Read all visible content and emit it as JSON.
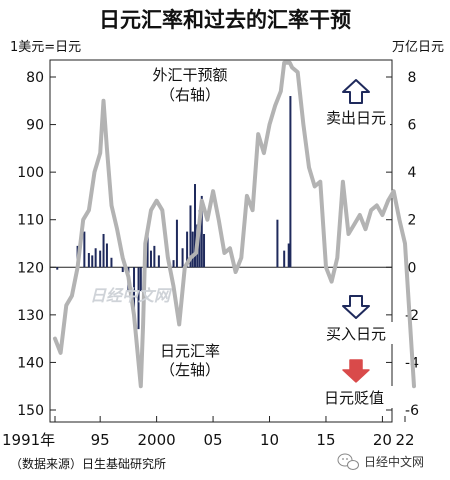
{
  "chart_data": {
    "type": "line",
    "title": "日元汇率和过去的汇率干预",
    "left_unit": "1美元=日元",
    "right_unit": "万亿日元",
    "left_axis": {
      "inverted": true,
      "ylim": [
        75,
        150
      ],
      "ticks": [
        "80",
        "90",
        "100",
        "110",
        "120",
        "130",
        "140",
        "150"
      ]
    },
    "right_axis": {
      "ylim": [
        -6,
        8
      ],
      "ticks": [
        "8",
        "6",
        "4",
        "2",
        "0",
        "-2",
        "-4",
        "-6"
      ]
    },
    "x_axis": {
      "xlim": [
        1991,
        2023
      ],
      "ticks": [
        "1991年",
        "95",
        "2000",
        "05",
        "10",
        "15",
        "20",
        "22"
      ]
    },
    "series": [
      {
        "label": "日元汇率（左轴）",
        "axis": "left",
        "style": "line",
        "color": "#b3b3b3",
        "points": [
          [
            1991.0,
            135
          ],
          [
            1991.5,
            138
          ],
          [
            1992.0,
            128
          ],
          [
            1992.5,
            126
          ],
          [
            1993.0,
            120
          ],
          [
            1993.5,
            110
          ],
          [
            1994.0,
            108
          ],
          [
            1994.5,
            100
          ],
          [
            1995.0,
            96
          ],
          [
            1995.3,
            85
          ],
          [
            1995.6,
            95
          ],
          [
            1996.0,
            107
          ],
          [
            1996.5,
            112
          ],
          [
            1997.0,
            118
          ],
          [
            1997.5,
            122
          ],
          [
            1998.0,
            130
          ],
          [
            1998.6,
            145
          ],
          [
            1998.8,
            132
          ],
          [
            1999.0,
            115
          ],
          [
            1999.5,
            108
          ],
          [
            2000.0,
            106
          ],
          [
            2000.5,
            108
          ],
          [
            2001.0,
            118
          ],
          [
            2001.5,
            124
          ],
          [
            2002.0,
            132
          ],
          [
            2002.5,
            120
          ],
          [
            2003.0,
            118
          ],
          [
            2003.5,
            117
          ],
          [
            2004.0,
            106
          ],
          [
            2004.5,
            110
          ],
          [
            2005.0,
            104
          ],
          [
            2005.5,
            110
          ],
          [
            2006.0,
            117
          ],
          [
            2006.5,
            116
          ],
          [
            2007.0,
            121
          ],
          [
            2007.5,
            118
          ],
          [
            2008.0,
            105
          ],
          [
            2008.5,
            108
          ],
          [
            2009.0,
            92
          ],
          [
            2009.5,
            96
          ],
          [
            2010.0,
            90
          ],
          [
            2010.5,
            86
          ],
          [
            2011.0,
            83
          ],
          [
            2011.3,
            77
          ],
          [
            2011.8,
            77
          ],
          [
            2012.0,
            78
          ],
          [
            2012.5,
            79
          ],
          [
            2013.0,
            90
          ],
          [
            2013.5,
            99
          ],
          [
            2014.0,
            103
          ],
          [
            2014.5,
            102
          ],
          [
            2015.0,
            120
          ],
          [
            2015.5,
            123
          ],
          [
            2016.0,
            118
          ],
          [
            2016.5,
            102
          ],
          [
            2017.0,
            113
          ],
          [
            2017.5,
            111
          ],
          [
            2018.0,
            109
          ],
          [
            2018.5,
            112
          ],
          [
            2019.0,
            108
          ],
          [
            2019.5,
            107
          ],
          [
            2020.0,
            109
          ],
          [
            2020.5,
            106
          ],
          [
            2021.0,
            104
          ],
          [
            2021.5,
            110
          ],
          [
            2022.0,
            115
          ],
          [
            2022.4,
            130
          ],
          [
            2022.8,
            145
          ]
        ]
      },
      {
        "label": "外汇干预额（右轴）",
        "axis": "right",
        "style": "bars",
        "color": "#1f2a5c",
        "points": [
          [
            1991.2,
            -0.1
          ],
          [
            1993.0,
            0.9
          ],
          [
            1993.6,
            1.5
          ],
          [
            1994.0,
            0.6
          ],
          [
            1994.3,
            0.5
          ],
          [
            1994.6,
            0.8
          ],
          [
            1995.0,
            0.7
          ],
          [
            1995.3,
            1.4
          ],
          [
            1995.6,
            1.0
          ],
          [
            1996.0,
            0.4
          ],
          [
            1997.0,
            -0.2
          ],
          [
            1997.5,
            -1.0
          ],
          [
            1998.0,
            -2.0
          ],
          [
            1998.4,
            -2.6
          ],
          [
            1998.6,
            -1.0
          ],
          [
            1999.2,
            1.7
          ],
          [
            1999.5,
            0.7
          ],
          [
            1999.8,
            0.9
          ],
          [
            2000.2,
            0.5
          ],
          [
            2001.5,
            0.3
          ],
          [
            2001.8,
            2.0
          ],
          [
            2002.3,
            0.8
          ],
          [
            2002.7,
            1.5
          ],
          [
            2003.0,
            2.6
          ],
          [
            2003.2,
            1.5
          ],
          [
            2003.4,
            3.5
          ],
          [
            2003.6,
            1.8
          ],
          [
            2003.8,
            2.4
          ],
          [
            2004.0,
            3.0
          ],
          [
            2004.2,
            1.4
          ],
          [
            2010.7,
            2.0
          ],
          [
            2011.3,
            0.7
          ],
          [
            2011.7,
            1.0
          ],
          [
            2011.85,
            7.2
          ]
        ]
      }
    ],
    "annotations": {
      "intervention_label": [
        "外汇干预额",
        "（右轴）"
      ],
      "rate_label": [
        "日元汇率",
        "（左轴）"
      ],
      "sell_yen": "卖出日元",
      "buy_yen": "买入日元",
      "yen_depreciation": "日元贬值"
    },
    "source": "（数据来源）日生基础研究所"
  },
  "watermark": "日经中文网",
  "brand": "日经中文网",
  "icons": {
    "sell": "up-arrow-outline-icon",
    "buy": "down-arrow-outline-icon",
    "depreciation": "down-arrow-red-icon",
    "brand": "wechat-bubble-icon"
  },
  "colors": {
    "rate_line": "#b3b3b3",
    "intervention_bars": "#1f2a5c",
    "depreciation_arrow": "#d94a4a"
  }
}
